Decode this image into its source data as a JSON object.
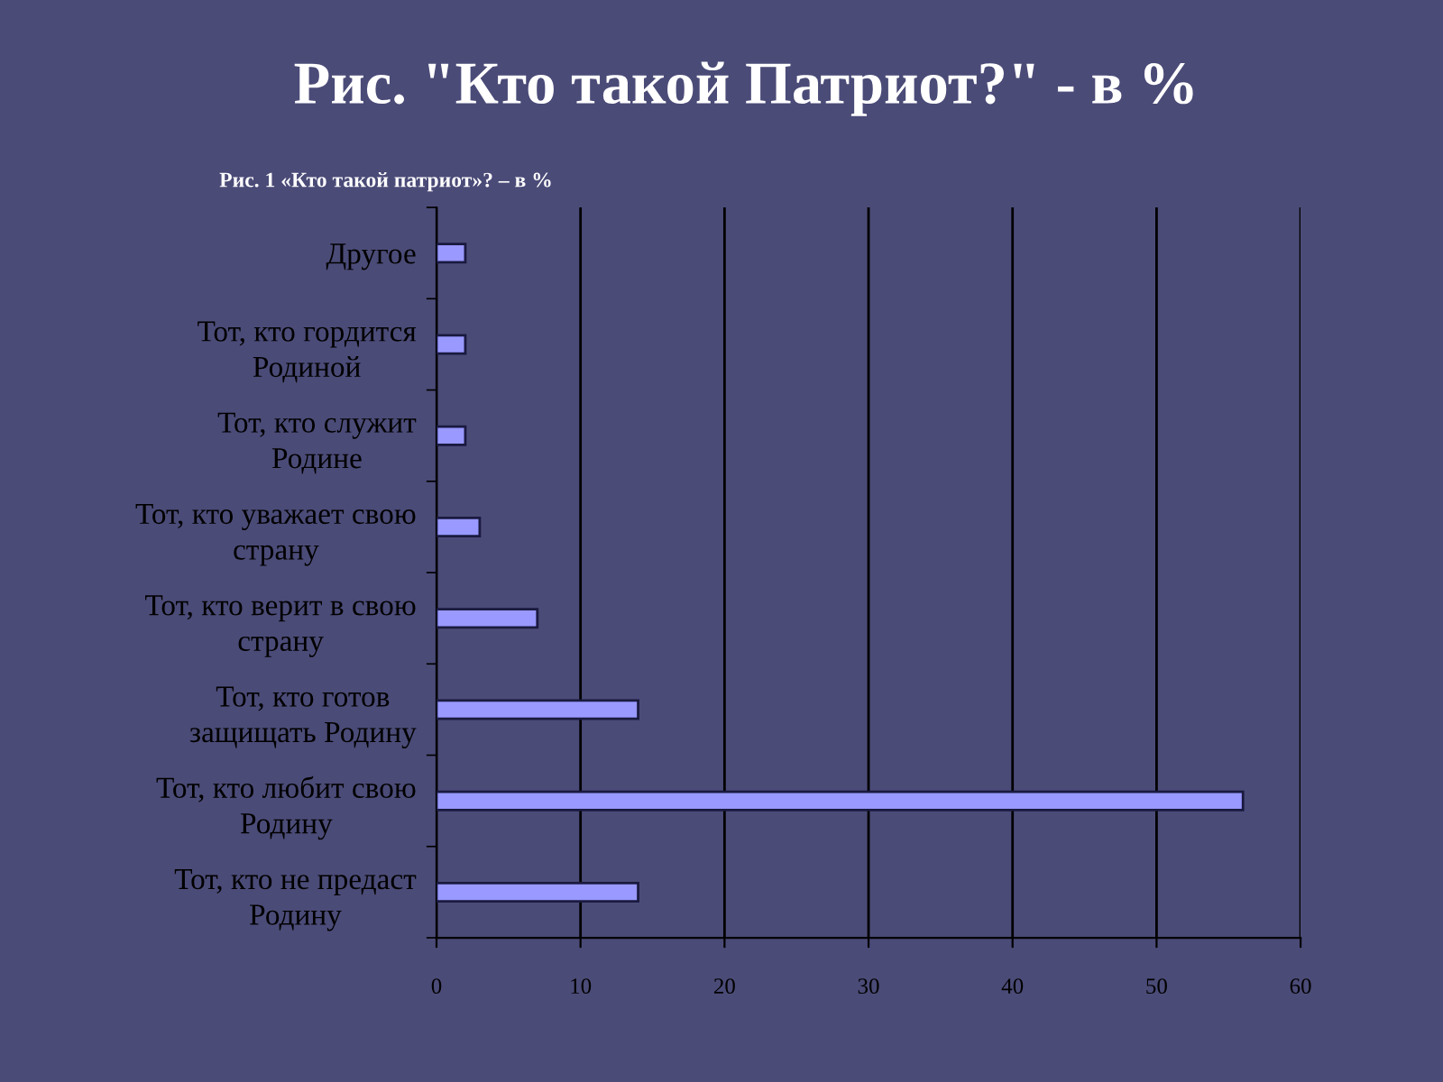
{
  "chart_data": {
    "type": "bar",
    "orientation": "horizontal",
    "title": "Рис. \"Кто такой Патриот?\" - в %",
    "subtitle": "Рис. 1 «Кто такой патриот»? – в %",
    "categories": [
      "Другое",
      "Тот, кто гордится\nРодиной",
      "Тот, кто служит\nРодине",
      "Тот, кто уважает свою\nстрану",
      "Тот, кто верит в свою\nстрану",
      "Тот, кто готов\nзащищать Родину",
      "Тот, кто любит свою\nРодину",
      "Тот, кто не предаст\nРодину"
    ],
    "values": [
      2,
      2,
      2,
      3,
      7,
      14,
      56,
      14
    ],
    "color": "#9999ff",
    "xlim": [
      0,
      60
    ],
    "xticks": [
      0,
      10,
      20,
      30,
      40,
      50,
      60
    ],
    "grid": "x"
  }
}
